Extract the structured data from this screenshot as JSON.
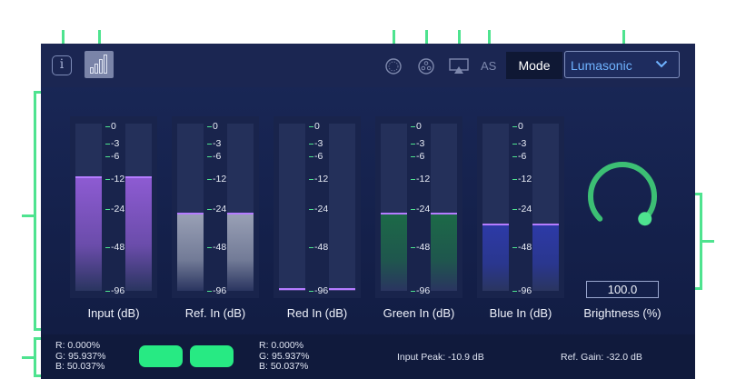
{
  "toolbar": {
    "info_glyph": "i",
    "as_label": "AS",
    "mode_label": "Mode",
    "mode_value": "Lumasonic",
    "icons": [
      "info-icon",
      "signal-bars-icon",
      "circle-icon",
      "three-dots-circle-icon",
      "airplay-icon",
      "chevron-down-icon"
    ]
  },
  "meters": [
    {
      "label": "Input (dB)",
      "level_db": -12,
      "color": "#8e5bd3"
    },
    {
      "label": "Ref. In (dB)",
      "level_db": -28,
      "color": "#9aa1b6"
    },
    {
      "label": "Red In (dB)",
      "level_db": -96,
      "color": "#9b58d6"
    },
    {
      "label": "Green In (dB)",
      "level_db": -28,
      "color": "#1c6a47"
    },
    {
      "label": "Blue In (dB)",
      "level_db": -35,
      "color": "#2d3aa8"
    }
  ],
  "scale": [
    "0",
    "3",
    "6",
    "12",
    "24",
    "48",
    "96"
  ],
  "brightness": {
    "label": "Brightness (%)",
    "value": "100.0",
    "level": 1.0,
    "color": "#3cbf74"
  },
  "status": {
    "left_rgb": {
      "r": "R: 0.000%",
      "g": "G: 95.937%",
      "b": "B: 50.037%"
    },
    "right_rgb": {
      "r": "R: 0.000%",
      "g": "G: 95.937%",
      "b": "B: 50.037%"
    },
    "input_peak": "Input Peak: -10.9 dB",
    "ref_gain": "Ref. Gain: -32.0 dB",
    "swatch_color": "#27ea83"
  },
  "accent_color": "#4ee38f"
}
